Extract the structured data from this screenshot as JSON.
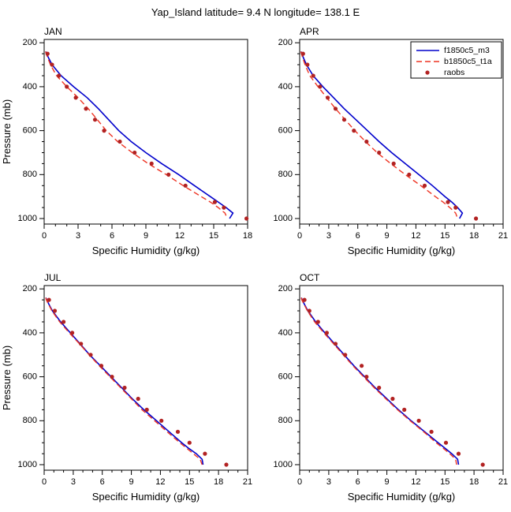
{
  "page_title": "Yap_Island latitude= 9.4 N longitude= 138.1 E",
  "axes": {
    "x_label": "Specific Humidity (g/kg)",
    "y_label": "Pressure (mb)",
    "y_ticks": [
      200,
      400,
      600,
      800,
      1000
    ],
    "y_minor_step": 50,
    "y_range": [
      185,
      1025
    ],
    "x_minor_step": 1
  },
  "legend": {
    "entries": [
      {
        "label": "f1850c5_m3",
        "kind": "line",
        "color": "#0000cc",
        "dash": ""
      },
      {
        "label": "b1850c5_t1a",
        "kind": "line",
        "color": "#ee3322",
        "dash": "7,4"
      },
      {
        "label": "raobs",
        "kind": "dot",
        "color": "#b22222",
        "dash": ""
      }
    ]
  },
  "chart_data": [
    {
      "type": "line",
      "title": "JAN",
      "xlim": [
        0,
        18
      ],
      "xticks": [
        0,
        3,
        6,
        9,
        12,
        15,
        18
      ],
      "show_y_title": true,
      "legend": false,
      "series": [
        {
          "name": "f1850c5_m3",
          "kind": "line",
          "color": "#0000cc",
          "width": 1.6,
          "dash": "",
          "pressure": [
            240,
            250,
            300,
            350,
            400,
            450,
            500,
            550,
            600,
            650,
            700,
            750,
            800,
            850,
            900,
            925,
            950,
            975,
            1000
          ],
          "values": [
            0.15,
            0.2,
            0.7,
            1.5,
            2.6,
            3.8,
            4.8,
            5.7,
            6.6,
            7.7,
            9.0,
            10.4,
            11.9,
            13.3,
            14.7,
            15.4,
            16.1,
            16.7,
            16.4
          ]
        },
        {
          "name": "b1850c5_t1a",
          "kind": "line",
          "color": "#ee3322",
          "width": 1.4,
          "dash": "7,4",
          "pressure": [
            240,
            250,
            300,
            350,
            400,
            450,
            500,
            550,
            600,
            650,
            700,
            750,
            800,
            850,
            900,
            925,
            950,
            975,
            1000
          ],
          "values": [
            0.12,
            0.18,
            0.55,
            1.1,
            2.0,
            3.0,
            3.9,
            4.7,
            5.5,
            6.5,
            7.8,
            9.2,
            10.8,
            12.3,
            13.9,
            14.7,
            15.4,
            16.0,
            16.2
          ]
        },
        {
          "name": "raobs",
          "kind": "scatter",
          "color": "#b22222",
          "pressure": [
            1000,
            950,
            925,
            850,
            800,
            750,
            700,
            650,
            600,
            550,
            500,
            450,
            400,
            350,
            300,
            250
          ],
          "values": [
            17.9,
            15.9,
            15.1,
            12.5,
            11.0,
            9.5,
            8.0,
            6.7,
            5.3,
            4.5,
            3.7,
            2.8,
            2.0,
            1.3,
            0.7,
            0.3
          ]
        }
      ]
    },
    {
      "type": "line",
      "title": "APR",
      "xlim": [
        0,
        21
      ],
      "xticks": [
        0,
        3,
        6,
        9,
        12,
        15,
        18,
        21
      ],
      "show_y_title": false,
      "legend": true,
      "series": [
        {
          "name": "f1850c5_m3",
          "kind": "line",
          "color": "#0000cc",
          "width": 1.6,
          "dash": "",
          "pressure": [
            240,
            250,
            300,
            350,
            400,
            450,
            500,
            550,
            600,
            650,
            700,
            750,
            800,
            850,
            900,
            925,
            950,
            975,
            1000
          ],
          "values": [
            0.15,
            0.2,
            0.7,
            1.4,
            2.4,
            3.5,
            4.6,
            5.8,
            7.0,
            8.2,
            9.5,
            10.9,
            12.3,
            13.7,
            15.0,
            15.7,
            16.3,
            16.8,
            16.5
          ]
        },
        {
          "name": "b1850c5_t1a",
          "kind": "line",
          "color": "#ee3322",
          "width": 1.4,
          "dash": "7,4",
          "pressure": [
            240,
            250,
            300,
            350,
            400,
            450,
            500,
            550,
            600,
            650,
            700,
            750,
            800,
            850,
            900,
            925,
            950,
            975,
            1000
          ],
          "values": [
            0.12,
            0.18,
            0.55,
            1.05,
            1.9,
            2.8,
            3.7,
            4.7,
            5.7,
            6.8,
            8.0,
            9.4,
            10.9,
            12.5,
            14.0,
            14.8,
            15.5,
            16.1,
            16.3
          ]
        },
        {
          "name": "raobs",
          "kind": "scatter",
          "color": "#b22222",
          "pressure": [
            1000,
            950,
            925,
            850,
            800,
            750,
            700,
            650,
            600,
            550,
            500,
            450,
            400,
            350,
            300,
            250
          ],
          "values": [
            18.2,
            16.1,
            15.3,
            12.9,
            11.3,
            9.7,
            8.2,
            6.9,
            5.6,
            4.6,
            3.7,
            2.9,
            2.1,
            1.4,
            0.8,
            0.35
          ]
        }
      ]
    },
    {
      "type": "line",
      "title": "JUL",
      "xlim": [
        0,
        21
      ],
      "xticks": [
        0,
        3,
        6,
        9,
        12,
        15,
        18,
        21
      ],
      "show_y_title": true,
      "legend": false,
      "series": [
        {
          "name": "f1850c5_m3",
          "kind": "line",
          "color": "#0000cc",
          "width": 1.6,
          "dash": "",
          "pressure": [
            240,
            250,
            300,
            350,
            400,
            450,
            500,
            550,
            600,
            650,
            700,
            750,
            800,
            850,
            900,
            925,
            950,
            975,
            1000
          ],
          "values": [
            0.18,
            0.25,
            0.85,
            1.7,
            2.7,
            3.7,
            4.7,
            5.8,
            6.9,
            8.0,
            9.1,
            10.3,
            11.6,
            12.9,
            14.2,
            14.9,
            15.7,
            16.3,
            16.4
          ]
        },
        {
          "name": "b1850c5_t1a",
          "kind": "line",
          "color": "#ee3322",
          "width": 1.4,
          "dash": "7,4",
          "pressure": [
            240,
            250,
            300,
            350,
            400,
            450,
            500,
            550,
            600,
            650,
            700,
            750,
            800,
            850,
            900,
            925,
            950,
            975,
            1000
          ],
          "values": [
            0.16,
            0.22,
            0.8,
            1.6,
            2.6,
            3.65,
            4.65,
            5.7,
            6.8,
            7.9,
            9.0,
            10.1,
            11.4,
            12.7,
            14.0,
            14.7,
            15.4,
            16.1,
            16.3
          ]
        },
        {
          "name": "raobs",
          "kind": "scatter",
          "color": "#b22222",
          "pressure": [
            1000,
            950,
            900,
            850,
            800,
            750,
            700,
            650,
            600,
            550,
            500,
            450,
            400,
            350,
            300,
            250
          ],
          "values": [
            18.8,
            16.6,
            15.0,
            13.8,
            12.1,
            10.6,
            9.7,
            8.3,
            7.0,
            5.9,
            4.8,
            3.8,
            2.9,
            2.0,
            1.1,
            0.5
          ]
        }
      ]
    },
    {
      "type": "line",
      "title": "OCT",
      "xlim": [
        0,
        21
      ],
      "xticks": [
        0,
        3,
        6,
        9,
        12,
        15,
        18,
        21
      ],
      "show_y_title": false,
      "legend": false,
      "series": [
        {
          "name": "f1850c5_m3",
          "kind": "line",
          "color": "#0000cc",
          "width": 1.6,
          "dash": "",
          "pressure": [
            240,
            250,
            300,
            350,
            400,
            450,
            500,
            550,
            600,
            650,
            700,
            750,
            800,
            850,
            900,
            925,
            950,
            975,
            1000
          ],
          "values": [
            0.18,
            0.25,
            0.85,
            1.65,
            2.6,
            3.6,
            4.6,
            5.6,
            6.7,
            7.8,
            9.0,
            10.2,
            11.5,
            12.9,
            14.3,
            15.0,
            15.7,
            16.3,
            16.4
          ]
        },
        {
          "name": "b1850c5_t1a",
          "kind": "line",
          "color": "#ee3322",
          "width": 1.4,
          "dash": "7,4",
          "pressure": [
            240,
            250,
            300,
            350,
            400,
            450,
            500,
            550,
            600,
            650,
            700,
            750,
            800,
            850,
            900,
            925,
            950,
            975,
            1000
          ],
          "values": [
            0.16,
            0.22,
            0.8,
            1.55,
            2.5,
            3.5,
            4.5,
            5.5,
            6.6,
            7.7,
            8.9,
            10.1,
            11.4,
            12.8,
            14.1,
            14.8,
            15.5,
            16.1,
            16.2
          ]
        },
        {
          "name": "raobs",
          "kind": "scatter",
          "color": "#b22222",
          "pressure": [
            1000,
            950,
            900,
            850,
            800,
            750,
            700,
            650,
            600,
            550,
            500,
            450,
            400,
            350,
            300,
            250
          ],
          "values": [
            18.9,
            16.4,
            15.1,
            13.6,
            12.3,
            10.8,
            9.6,
            8.2,
            6.9,
            6.4,
            4.7,
            3.7,
            2.8,
            1.9,
            1.0,
            0.5
          ]
        }
      ]
    }
  ]
}
